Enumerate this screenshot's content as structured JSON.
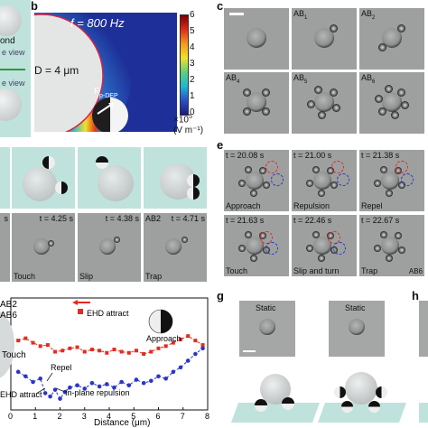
{
  "panel_letters": {
    "b": "b",
    "c": "c",
    "e": "e",
    "g": "g",
    "h": "h"
  },
  "panel_a": {
    "fragment1": "ond",
    "fragment2": "e view",
    "fragment3": "e view"
  },
  "panel_b": {
    "freq": "f = 800 Hz",
    "diameter": "D = 4 μm",
    "force_label": "F",
    "force_sub": "p-DEP",
    "colorbar_ticks": [
      "6",
      "5",
      "4",
      "3",
      "2",
      "1",
      "0"
    ],
    "colorbar_unit1": "×10",
    "colorbar_exp": "5",
    "colorbar_unit2": "(V m⁻¹)"
  },
  "panel_c": {
    "labels": [
      "",
      "AB1",
      "AB2",
      "AB4",
      "AB5",
      "AB6"
    ],
    "sub": [
      "",
      "1",
      "2",
      "4",
      "5",
      "6"
    ]
  },
  "panel_d": {
    "times": [
      "s",
      "t = 4.25 s",
      "t = 4.38 s",
      "AB2 s t = 4.71 s"
    ],
    "time_display": [
      "s",
      "t = 4.25 s",
      "t = 4.38 s",
      "t = 4.71 s"
    ],
    "ab2": "AB2",
    "states": [
      "Touch",
      "Slip",
      "Trap"
    ]
  },
  "panel_e": {
    "times": [
      "t = 20.08 s",
      "t = 21.00 s",
      "t = 21.38 s",
      "t = 21.63 s",
      "t = 22.46 s",
      "t = 22.67 s"
    ],
    "states": [
      "Approach",
      "Repulsion",
      "Repel",
      "Touch",
      "Slip and turn",
      "Trap"
    ],
    "ab6": "AB6"
  },
  "panel_f": {
    "legend_ab2": "AB2",
    "legend_ab6": "AB6",
    "ehd_attract": "EHD attract",
    "ehd_attract2": "EHD attract",
    "approach": "Approach",
    "repel": "Repel",
    "touch": "Touch",
    "inplane": "In-plane repulsion",
    "xlabel": "Distance (μm)",
    "xticks": [
      "0",
      "1",
      "2",
      "3",
      "4",
      "5",
      "6",
      "7",
      "8"
    ]
  },
  "chart_data": {
    "type": "line",
    "xlabel": "Distance (μm)",
    "xlim": [
      0,
      8
    ],
    "ylim": [
      0,
      1
    ],
    "series": [
      {
        "name": "AB2",
        "color": "#e32b1f",
        "x": [
          0.3,
          0.6,
          0.9,
          1.2,
          1.5,
          1.8,
          2.1,
          2.4,
          2.7,
          3.0,
          3.3,
          3.6,
          3.9,
          4.2,
          4.5,
          4.8,
          5.1,
          5.4,
          5.7,
          6.0,
          6.3,
          6.6,
          6.9,
          7.2,
          7.5,
          7.8
        ],
        "y": [
          0.62,
          0.64,
          0.6,
          0.57,
          0.58,
          0.52,
          0.53,
          0.55,
          0.56,
          0.52,
          0.54,
          0.53,
          0.51,
          0.54,
          0.52,
          0.51,
          0.53,
          0.5,
          0.52,
          0.55,
          0.57,
          0.6,
          0.63,
          0.66,
          0.62,
          0.58
        ]
      },
      {
        "name": "AB6",
        "color": "#2a36c8",
        "x": [
          0.3,
          0.6,
          0.9,
          1.2,
          1.4,
          1.6,
          1.8,
          2.0,
          2.2,
          2.4,
          2.7,
          3.0,
          3.3,
          3.6,
          3.9,
          4.2,
          4.5,
          4.8,
          5.1,
          5.4,
          5.7,
          6.0,
          6.3,
          6.6,
          6.9,
          7.2,
          7.5,
          7.8
        ],
        "y": [
          0.34,
          0.3,
          0.25,
          0.28,
          0.15,
          0.12,
          0.18,
          0.1,
          0.16,
          0.2,
          0.22,
          0.19,
          0.24,
          0.21,
          0.23,
          0.2,
          0.25,
          0.22,
          0.27,
          0.24,
          0.26,
          0.3,
          0.28,
          0.34,
          0.38,
          0.44,
          0.5,
          0.55
        ]
      }
    ]
  },
  "panel_g": {
    "static1": "Static",
    "static2": "Static"
  },
  "colors": {
    "teal": "#bfe2dc",
    "ab2": "#e32b1f",
    "ab6": "#2a36c8"
  }
}
